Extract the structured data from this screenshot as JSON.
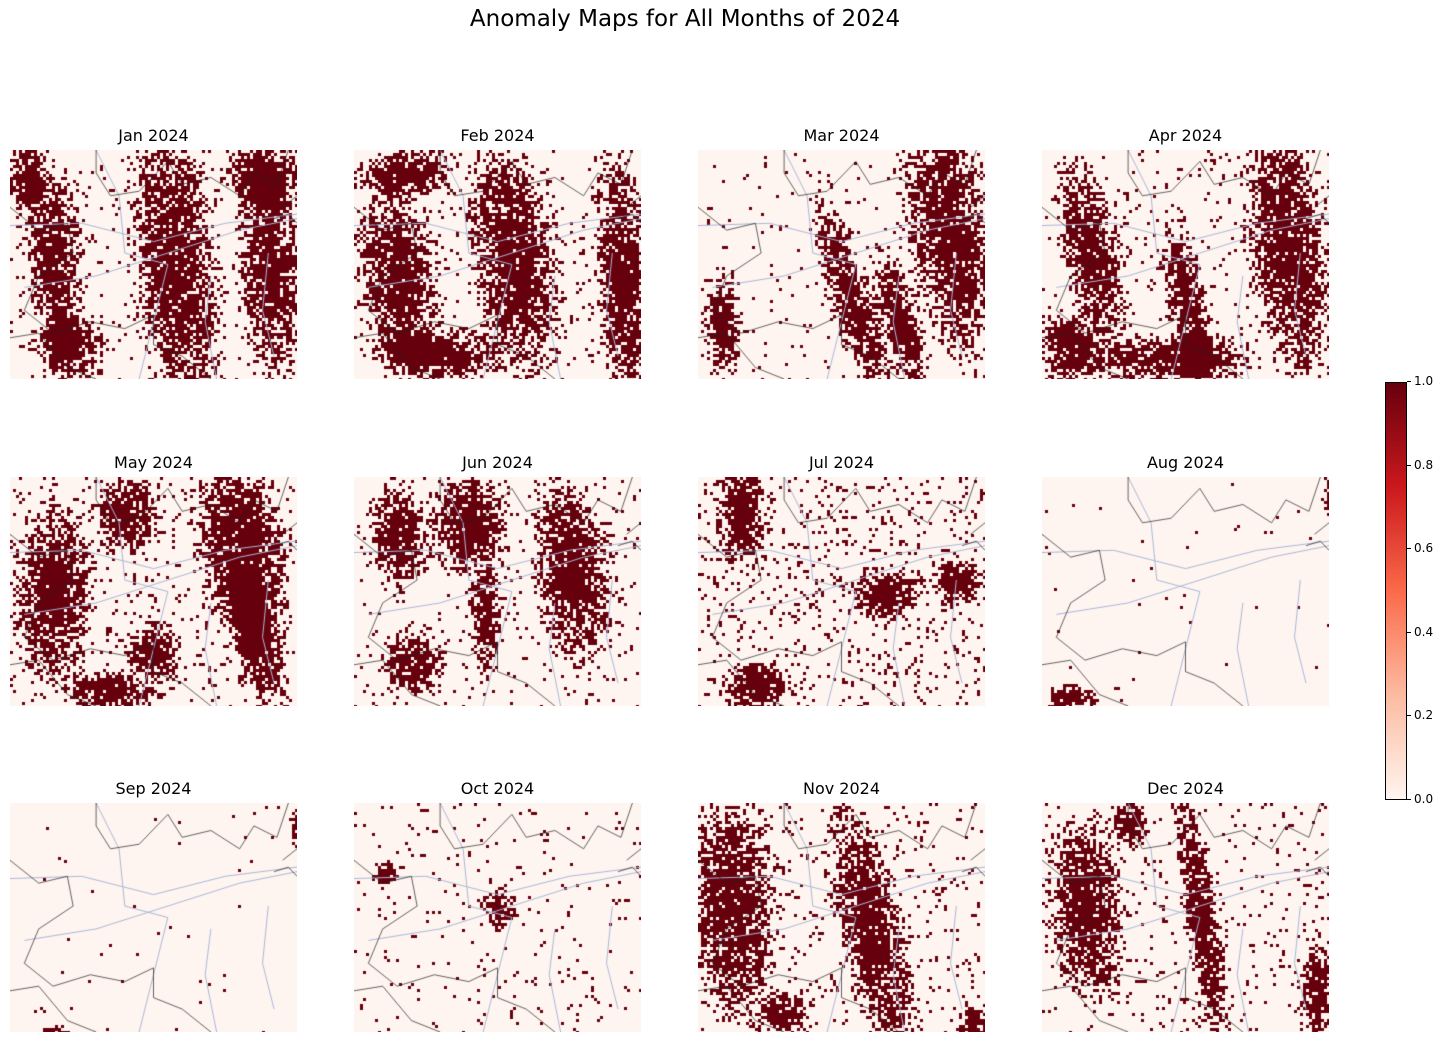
{
  "title": "Anomaly Maps for All Months of 2024",
  "colors": {
    "low": "#fff5f0",
    "high": "#67000d",
    "border": "#222222",
    "river": "#a9b8d8"
  },
  "chart_data": {
    "type": "heatmap",
    "title": "Anomaly Maps for All Months of 2024",
    "colormap": "Reds",
    "value_range": [
      0.0,
      1.0
    ],
    "colorbar_ticks": [
      "0.0",
      "0.2",
      "0.4",
      "0.6",
      "0.8",
      "1.0"
    ],
    "colorbar_position": "right",
    "panels": [
      {
        "label": "Jan 2024",
        "blobs": [
          [
            0.57,
            0.5,
            0.13,
            0.55,
            0.08
          ],
          [
            0.15,
            0.45,
            0.09,
            0.35,
            0.06
          ],
          [
            0.9,
            0.55,
            0.1,
            0.4,
            0.05
          ],
          [
            0.88,
            0.1,
            0.12,
            0.15,
            0
          ],
          [
            0.2,
            0.85,
            0.12,
            0.12,
            0
          ],
          [
            0.05,
            0.1,
            0.06,
            0.15,
            0
          ]
        ],
        "density": 0.04
      },
      {
        "label": "Feb 2024",
        "blobs": [
          [
            0.55,
            0.45,
            0.13,
            0.45,
            0.1
          ],
          [
            0.93,
            0.55,
            0.08,
            0.5,
            0.05
          ],
          [
            0.18,
            0.1,
            0.15,
            0.1,
            0
          ],
          [
            0.15,
            0.55,
            0.12,
            0.35,
            0.1
          ],
          [
            0.3,
            0.88,
            0.2,
            0.1,
            0
          ]
        ],
        "density": 0.06
      },
      {
        "label": "Mar 2024",
        "blobs": [
          [
            0.87,
            0.35,
            0.14,
            0.5,
            0.12
          ],
          [
            0.53,
            0.65,
            0.07,
            0.4,
            0.25
          ],
          [
            0.7,
            0.75,
            0.06,
            0.3,
            0.2
          ],
          [
            0.08,
            0.75,
            0.06,
            0.2,
            0
          ]
        ],
        "density": 0.03
      },
      {
        "label": "Apr 2024",
        "blobs": [
          [
            0.85,
            0.4,
            0.12,
            0.55,
            0.08
          ],
          [
            0.17,
            0.45,
            0.09,
            0.35,
            0.15
          ],
          [
            0.5,
            0.65,
            0.06,
            0.3,
            0.15
          ],
          [
            0.45,
            0.9,
            0.25,
            0.1,
            0
          ],
          [
            0.1,
            0.85,
            0.1,
            0.15,
            0
          ]
        ],
        "density": 0.05
      },
      {
        "label": "May 2024",
        "blobs": [
          [
            0.8,
            0.3,
            0.14,
            0.35,
            0.1
          ],
          [
            0.85,
            0.7,
            0.08,
            0.25,
            0.15
          ],
          [
            0.15,
            0.5,
            0.12,
            0.35,
            0
          ],
          [
            0.4,
            0.15,
            0.1,
            0.15,
            0
          ],
          [
            0.5,
            0.75,
            0.08,
            0.12,
            0
          ],
          [
            0.35,
            0.92,
            0.15,
            0.08,
            0
          ]
        ],
        "density": 0.07
      },
      {
        "label": "Jun 2024",
        "blobs": [
          [
            0.4,
            0.2,
            0.12,
            0.2,
            0.05
          ],
          [
            0.75,
            0.4,
            0.12,
            0.35,
            0.1
          ],
          [
            0.15,
            0.25,
            0.1,
            0.2,
            0
          ],
          [
            0.45,
            0.6,
            0.05,
            0.2,
            0
          ],
          [
            0.2,
            0.8,
            0.1,
            0.12,
            0
          ]
        ],
        "density": 0.05
      },
      {
        "label": "Jul 2024",
        "blobs": [
          [
            0.15,
            0.15,
            0.08,
            0.2,
            0
          ],
          [
            0.65,
            0.5,
            0.12,
            0.1,
            0
          ],
          [
            0.9,
            0.45,
            0.08,
            0.1,
            0
          ],
          [
            0.2,
            0.9,
            0.1,
            0.1,
            0
          ]
        ],
        "density": 0.09
      },
      {
        "label": "Aug 2024",
        "blobs": [
          [
            0.1,
            0.95,
            0.08,
            0.06,
            0
          ],
          [
            0.99,
            0.08,
            0.02,
            0.08,
            0
          ]
        ],
        "density": 0.005
      },
      {
        "label": "Sep 2024",
        "blobs": [
          [
            0.99,
            0.1,
            0.02,
            0.1,
            0
          ],
          [
            0.15,
            0.98,
            0.05,
            0.02,
            0
          ]
        ],
        "density": 0.005
      },
      {
        "label": "Oct 2024",
        "blobs": [
          [
            0.5,
            0.45,
            0.05,
            0.08,
            0
          ],
          [
            0.1,
            0.3,
            0.05,
            0.05,
            0
          ]
        ],
        "density": 0.03
      },
      {
        "label": "Nov 2024",
        "blobs": [
          [
            0.12,
            0.45,
            0.13,
            0.45,
            0.05
          ],
          [
            0.6,
            0.55,
            0.1,
            0.5,
            0.18
          ],
          [
            0.95,
            0.95,
            0.05,
            0.08,
            0
          ],
          [
            0.3,
            0.9,
            0.08,
            0.08,
            0
          ]
        ],
        "density": 0.06
      },
      {
        "label": "Dec 2024",
        "blobs": [
          [
            0.15,
            0.45,
            0.12,
            0.35,
            0.05
          ],
          [
            0.55,
            0.5,
            0.05,
            0.55,
            0.12
          ],
          [
            0.95,
            0.8,
            0.05,
            0.2,
            0
          ],
          [
            0.3,
            0.08,
            0.06,
            0.1,
            0
          ]
        ],
        "density": 0.05
      }
    ]
  }
}
